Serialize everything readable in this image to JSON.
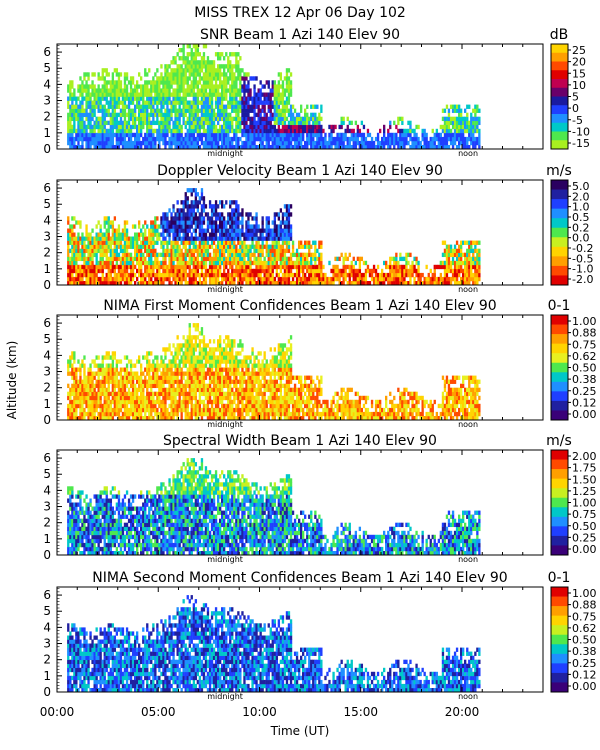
{
  "header": "MISS TREX    12 Apr 06 Day 102",
  "xlabel": "Time (UT)",
  "ylabel": "Altitude (km)",
  "marker_midnight": "midnight",
  "marker_noon": "noon",
  "x_ticks": [
    "00:00",
    "05:00",
    "10:00",
    "15:00",
    "20:00"
  ],
  "y_ticks": [
    "0",
    "1",
    "2",
    "3",
    "4",
    "5",
    "6"
  ],
  "chart_data": [
    {
      "type": "heatmap",
      "title": "SNR Beam 1 Azi 140 Elev 90",
      "unit": "dB",
      "colorbar_ticks": [
        "25",
        "20",
        "15",
        "10",
        "5",
        "0",
        "-5",
        "-10",
        "-15"
      ],
      "colors": [
        "#ffd400",
        "#ff9f00",
        "#ff4a00",
        "#e00000",
        "#c00050",
        "#6a006a",
        "#1a1aa0",
        "#1f3fff",
        "#1f8fff",
        "#00c8c8",
        "#4ee84e",
        "#a8f020"
      ],
      "x_range_hours": [
        0,
        24
      ],
      "y_range_km": [
        0,
        6.5
      ]
    },
    {
      "type": "heatmap",
      "title": "Doppler Velocity Beam 1 Azi 140 Elev 90",
      "unit": "m/s",
      "colorbar_ticks": [
        "5.0",
        "2.0",
        "1.0",
        "0.5",
        "0.2",
        "0.0",
        "-0.2",
        "-0.5",
        "-1.0",
        "-2.0"
      ],
      "colors": [
        "#2a0060",
        "#2020a0",
        "#1f3fff",
        "#1f8fff",
        "#00c8c8",
        "#4ee84e",
        "#c8f020",
        "#ffd400",
        "#ff9f00",
        "#ff4a00",
        "#e00000"
      ],
      "x_range_hours": [
        0,
        24
      ],
      "y_range_km": [
        0,
        6.5
      ]
    },
    {
      "type": "heatmap",
      "title": "NIMA First Moment Confidences Beam 1 Azi 140 Elev 90",
      "unit": "0-1",
      "colorbar_ticks": [
        "1.00",
        "0.88",
        "0.75",
        "0.62",
        "0.50",
        "0.38",
        "0.25",
        "0.12",
        "0.00"
      ],
      "colors": [
        "#e00000",
        "#ff4a00",
        "#ff9f00",
        "#ffd400",
        "#e8f020",
        "#4ee84e",
        "#00c8c8",
        "#1f8fff",
        "#1f3fff",
        "#2020a0",
        "#3a0078"
      ],
      "x_range_hours": [
        0,
        24
      ],
      "y_range_km": [
        0,
        6.5
      ]
    },
    {
      "type": "heatmap",
      "title": "Spectral Width Beam 1 Azi 140 Elev 90",
      "unit": "m/s",
      "colorbar_ticks": [
        "2.00",
        "1.75",
        "1.50",
        "1.25",
        "1.00",
        "0.75",
        "0.50",
        "0.25",
        "0.00"
      ],
      "colors": [
        "#e00000",
        "#ff4a00",
        "#ff9f00",
        "#ffd400",
        "#c8f020",
        "#4ee84e",
        "#00c8c8",
        "#1f8fff",
        "#1f3fff",
        "#2020a0",
        "#3a0078"
      ],
      "x_range_hours": [
        0,
        24
      ],
      "y_range_km": [
        0,
        6.5
      ]
    },
    {
      "type": "heatmap",
      "title": "NIMA Second Moment Confidences Beam 1 Azi 140 Elev 90",
      "unit": "0-1",
      "colorbar_ticks": [
        "1.00",
        "0.88",
        "0.75",
        "0.62",
        "0.50",
        "0.38",
        "0.25",
        "0.12",
        "0.00"
      ],
      "colors": [
        "#e00000",
        "#ff4a00",
        "#ff9f00",
        "#ffd400",
        "#c8f020",
        "#4ee84e",
        "#00c8c8",
        "#1f8fff",
        "#1f3fff",
        "#2020a0",
        "#3a0078"
      ],
      "x_range_hours": [
        0,
        24
      ],
      "y_range_km": [
        0,
        6.5
      ]
    }
  ]
}
